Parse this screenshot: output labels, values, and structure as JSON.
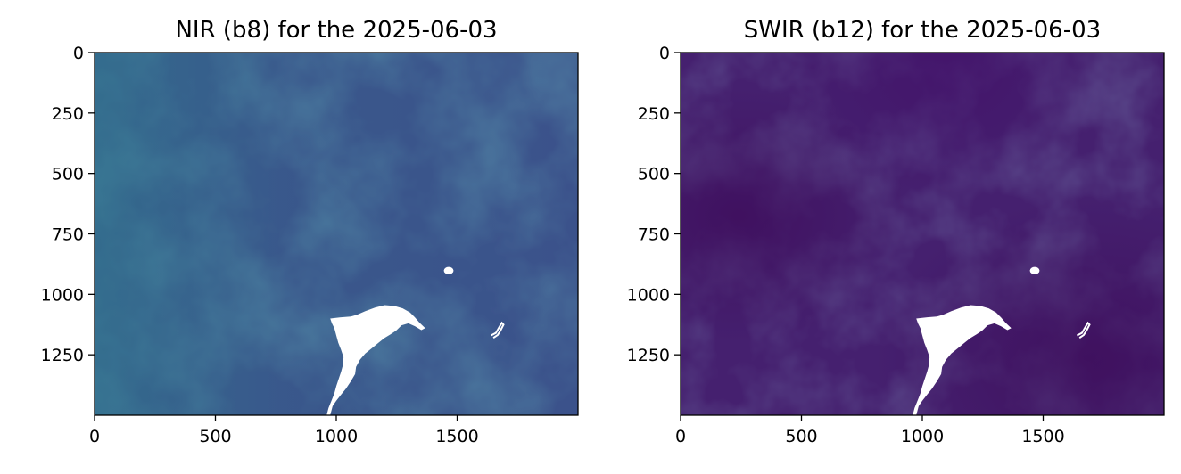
{
  "chart_data": [
    {
      "type": "heatmap",
      "title": "NIR (b8) for the 2025-06-03",
      "xlabel": "",
      "ylabel": "",
      "xlim": [
        0,
        2000
      ],
      "ylim": [
        1500,
        0
      ],
      "x_ticks": [
        0,
        500,
        1000,
        1500
      ],
      "y_ticks": [
        0,
        250,
        500,
        750,
        1000,
        1250
      ],
      "colormap": "viridis",
      "base_color": "#3b528b",
      "nodata_color": "#ffffff",
      "grid": false
    },
    {
      "type": "heatmap",
      "title": "SWIR (b12) for the 2025-06-03",
      "xlabel": "",
      "ylabel": "",
      "xlim": [
        0,
        2000
      ],
      "ylim": [
        1500,
        0
      ],
      "x_ticks": [
        0,
        500,
        1000,
        1500
      ],
      "y_ticks": [
        0,
        250,
        500,
        750,
        1000,
        1250
      ],
      "colormap": "viridis",
      "base_color": "#45206f",
      "nodata_color": "#ffffff",
      "grid": false
    }
  ]
}
